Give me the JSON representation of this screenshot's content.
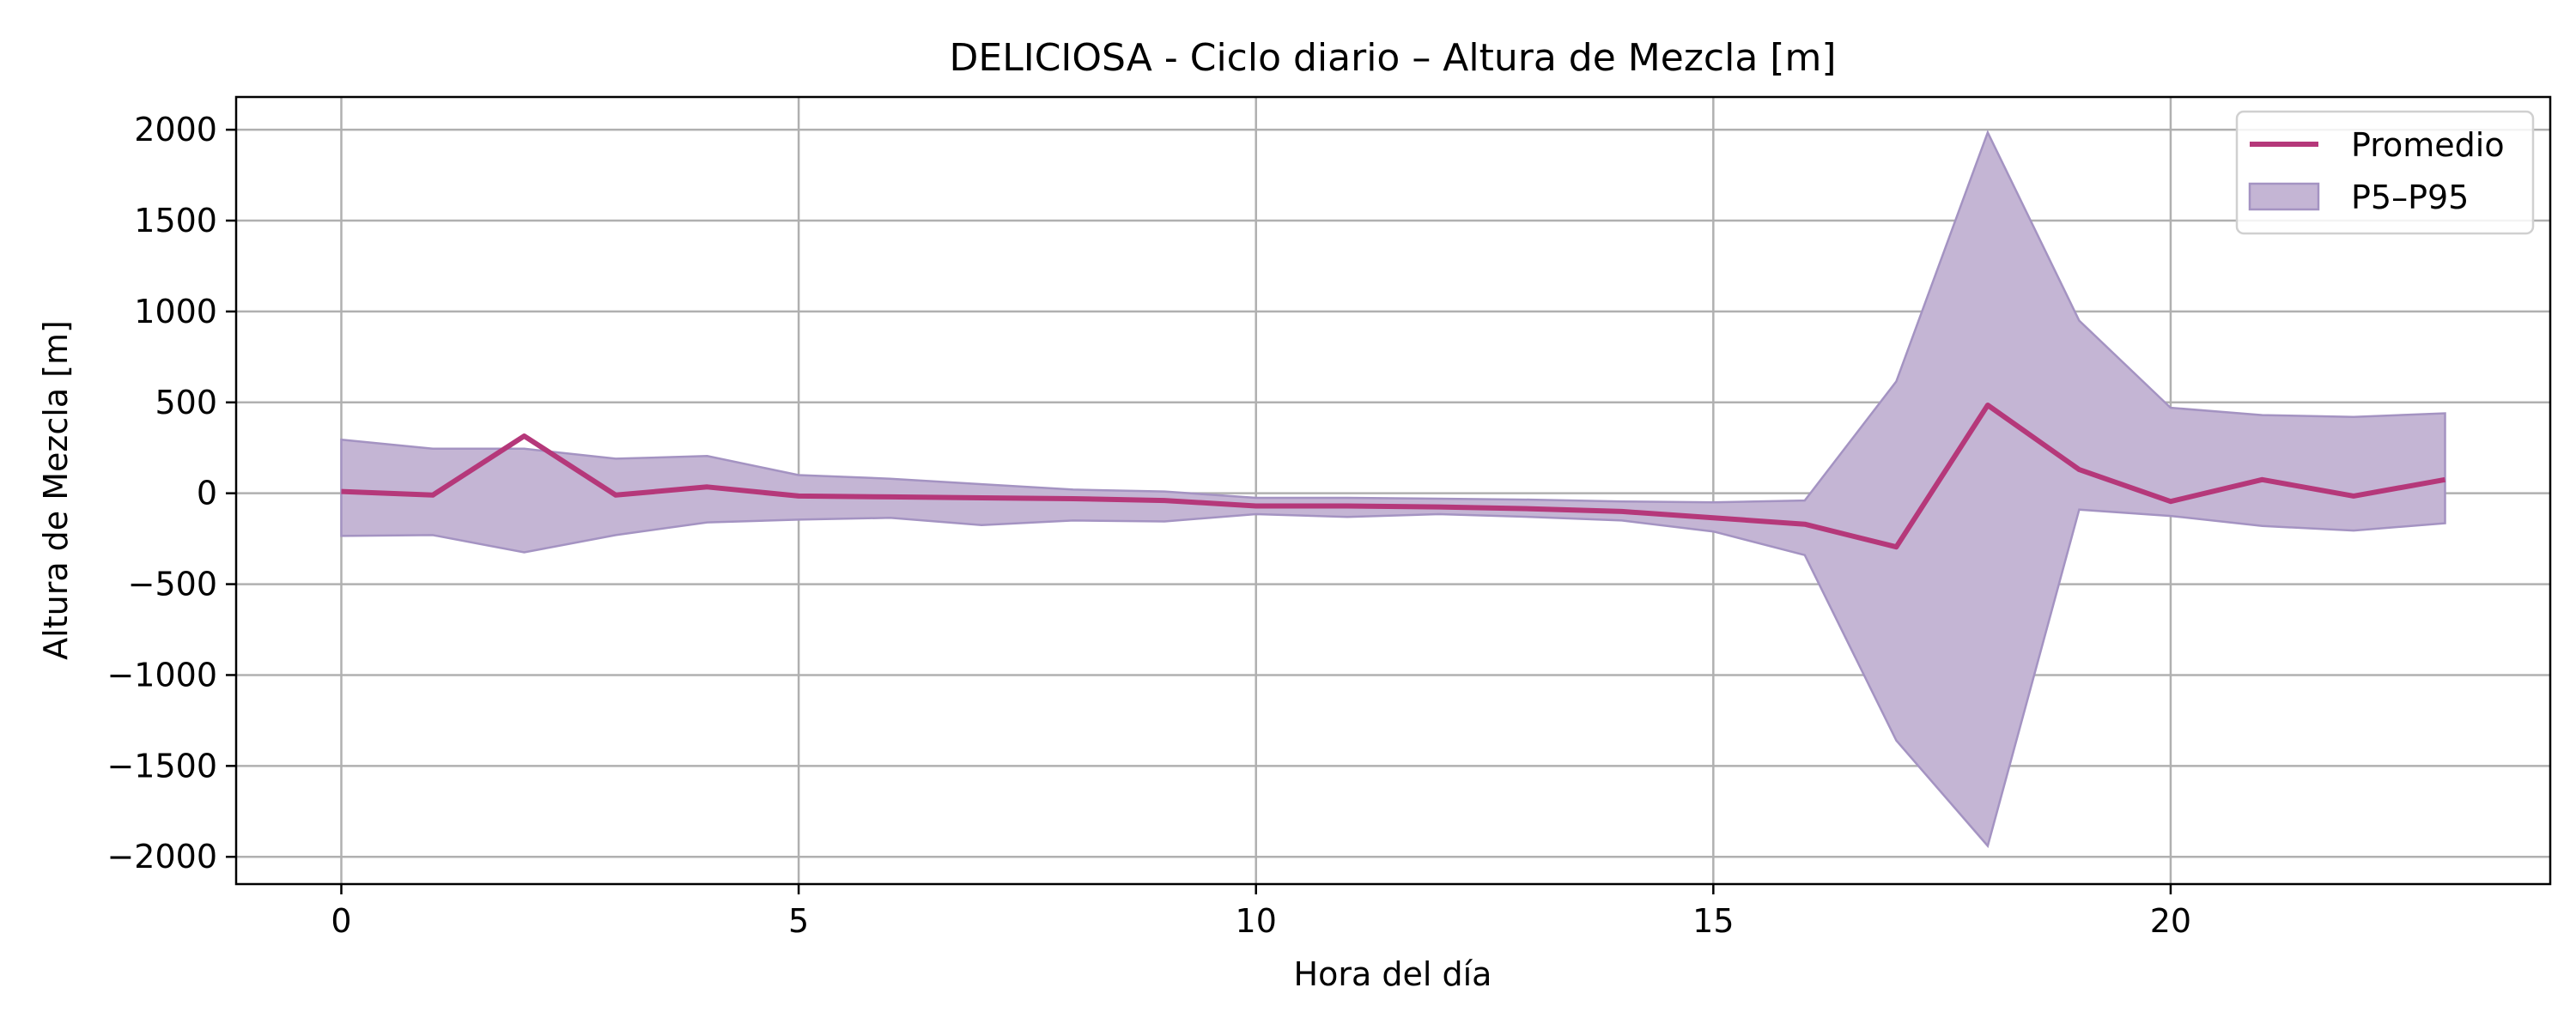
{
  "chart_data": {
    "type": "line",
    "title": "DELICIOSA - Ciclo diario – Altura de Mezcla [m]",
    "xlabel": "Hora del día",
    "ylabel": "Altura de Mezcla [m]",
    "xlim": [
      -1.15,
      24.15
    ],
    "ylim": [
      -2150,
      2180
    ],
    "xticks": [
      0,
      5,
      10,
      15,
      20
    ],
    "xtick_labels": [
      "0",
      "5",
      "10",
      "15",
      "20"
    ],
    "yticks": [
      -2000,
      -1500,
      -1000,
      -500,
      0,
      500,
      1000,
      1500,
      2000
    ],
    "ytick_labels": [
      "−2000",
      "−1500",
      "−1000",
      "−500",
      "0",
      "500",
      "1000",
      "1500",
      "2000"
    ],
    "grid": true,
    "legend_position": "top-right",
    "x": [
      0,
      1,
      2,
      3,
      4,
      5,
      6,
      7,
      8,
      9,
      10,
      11,
      12,
      13,
      14,
      15,
      16,
      17,
      18,
      19,
      20,
      21,
      22,
      23
    ],
    "series": [
      {
        "name": "Promedio",
        "kind": "line",
        "color": "#b5387a",
        "values": [
          10,
          -10,
          315,
          -10,
          35,
          -15,
          -20,
          -25,
          -30,
          -40,
          -70,
          -70,
          -75,
          -85,
          -100,
          -135,
          -170,
          -295,
          485,
          130,
          -45,
          75,
          -15,
          75
        ]
      },
      {
        "name": "P5–P95",
        "kind": "band",
        "color": "#c4b5d4",
        "edge_color": "#a493c2",
        "lower": [
          -235,
          -230,
          -325,
          -230,
          -160,
          -145,
          -135,
          -175,
          -150,
          -155,
          -115,
          -130,
          -115,
          -130,
          -150,
          -210,
          -340,
          -1360,
          -1940,
          -90,
          -125,
          -180,
          -205,
          -165
        ],
        "upper": [
          295,
          245,
          245,
          190,
          205,
          100,
          80,
          50,
          20,
          10,
          -25,
          -25,
          -30,
          -35,
          -45,
          -50,
          -40,
          615,
          1985,
          950,
          470,
          430,
          420,
          440
        ]
      }
    ]
  }
}
